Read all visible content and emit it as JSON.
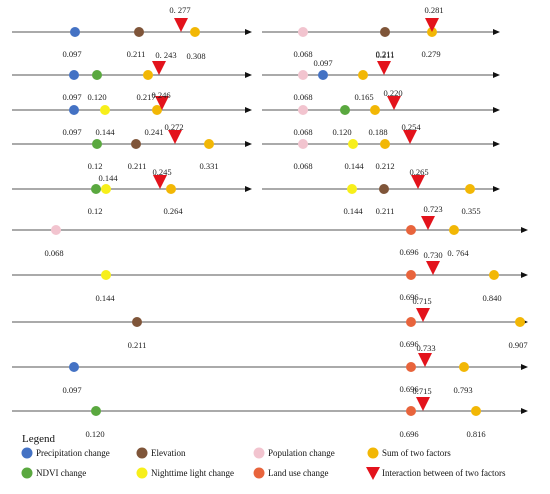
{
  "colors": {
    "precipitation": "#4472c4",
    "elevation": "#7f5539",
    "population": "#f2c4cf",
    "sum": "#f2b705",
    "ndvi": "#5aa83f",
    "light": "#f7ef1a",
    "landuse": "#e8643c",
    "interaction": "#e3131c",
    "axis": "#555555"
  },
  "legend": {
    "title": "Legend",
    "items": [
      {
        "key": "precipitation",
        "shape": "circle",
        "label": "Precipitation change"
      },
      {
        "key": "elevation",
        "shape": "circle",
        "label": "Elevation"
      },
      {
        "key": "population",
        "shape": "circle",
        "label": "Population change"
      },
      {
        "key": "sum",
        "shape": "circle",
        "label": "Sum of two factors"
      },
      {
        "key": "ndvi",
        "shape": "circle",
        "label": "NDVI change"
      },
      {
        "key": "light",
        "shape": "circle",
        "label": "Nighttime light change"
      },
      {
        "key": "landuse",
        "shape": "circle",
        "label": "Land use change"
      },
      {
        "key": "interaction",
        "shape": "triangle",
        "label": "Interaction between of two factors"
      }
    ]
  },
  "lines": [
    {
      "id": "L1",
      "markers": [
        {
          "type": "precipitation",
          "value": "0.097"
        },
        {
          "type": "elevation",
          "value": "0.211"
        },
        {
          "type": "sum",
          "value": "0.308"
        },
        {
          "type": "interaction",
          "value": "0. 277"
        }
      ]
    },
    {
      "id": "R1",
      "markers": [
        {
          "type": "population",
          "value": "0.068"
        },
        {
          "type": "elevation",
          "value": "0.211"
        },
        {
          "type": "sum",
          "value": "0.279"
        },
        {
          "type": "interaction",
          "value": "0.281"
        }
      ]
    },
    {
      "id": "L2",
      "markers": [
        {
          "type": "precipitation",
          "value": "0.097"
        },
        {
          "type": "ndvi",
          "value": "0.120"
        },
        {
          "type": "sum",
          "value": "0.217"
        },
        {
          "type": "interaction",
          "value": "0. 243"
        }
      ]
    },
    {
      "id": "R2",
      "markers": [
        {
          "type": "population",
          "value": "0.068"
        },
        {
          "type": "precipitation",
          "value": "0.097"
        },
        {
          "type": "sum",
          "value": "0.165"
        },
        {
          "type": "interaction",
          "value": "0.211"
        }
      ]
    },
    {
      "id": "L3",
      "markers": [
        {
          "type": "precipitation",
          "value": "0.097"
        },
        {
          "type": "light",
          "value": "0.144"
        },
        {
          "type": "sum",
          "value": "0.241"
        },
        {
          "type": "interaction",
          "value": "0.246"
        }
      ]
    },
    {
      "id": "R3",
      "markers": [
        {
          "type": "population",
          "value": "0.068"
        },
        {
          "type": "ndvi",
          "value": "0.120"
        },
        {
          "type": "sum",
          "value": "0.188"
        },
        {
          "type": "interaction",
          "value": "0.220"
        }
      ]
    },
    {
      "id": "L4",
      "markers": [
        {
          "type": "ndvi",
          "value": "0.12"
        },
        {
          "type": "elevation",
          "value": "0.211"
        },
        {
          "type": "interaction",
          "value": "0.272"
        },
        {
          "type": "sum",
          "value": "0.331"
        }
      ]
    },
    {
      "id": "R4",
      "markers": [
        {
          "type": "population",
          "value": "0.068"
        },
        {
          "type": "light",
          "value": "0.144"
        },
        {
          "type": "sum",
          "value": "0.212"
        },
        {
          "type": "interaction",
          "value": "0.254"
        }
      ]
    },
    {
      "id": "L5",
      "markers": [
        {
          "type": "ndvi",
          "value": "0.12"
        },
        {
          "type": "light",
          "value": "0.144"
        },
        {
          "type": "interaction",
          "value": "0.245"
        },
        {
          "type": "sum",
          "value": "0.264"
        }
      ]
    },
    {
      "id": "R5",
      "markers": [
        {
          "type": "light",
          "value": "0.144"
        },
        {
          "type": "elevation",
          "value": "0.211"
        },
        {
          "type": "interaction",
          "value": "0.265"
        },
        {
          "type": "sum",
          "value": "0.355"
        }
      ]
    },
    {
      "id": "F1",
      "markers": [
        {
          "type": "population",
          "value": "0.068"
        },
        {
          "type": "landuse",
          "value": "0.696"
        },
        {
          "type": "interaction",
          "value": "0.723"
        },
        {
          "type": "sum",
          "value": "0. 764"
        }
      ]
    },
    {
      "id": "F2",
      "markers": [
        {
          "type": "light",
          "value": "0.144"
        },
        {
          "type": "landuse",
          "value": "0.696"
        },
        {
          "type": "interaction",
          "value": "0.730"
        },
        {
          "type": "sum",
          "value": "0.840"
        }
      ]
    },
    {
      "id": "F3",
      "markers": [
        {
          "type": "elevation",
          "value": "0.211"
        },
        {
          "type": "landuse",
          "value": "0.696"
        },
        {
          "type": "interaction",
          "value": "0.715"
        },
        {
          "type": "sum",
          "value": "0.907"
        }
      ]
    },
    {
      "id": "F4",
      "markers": [
        {
          "type": "precipitation",
          "value": "0.097"
        },
        {
          "type": "landuse",
          "value": "0.696"
        },
        {
          "type": "interaction",
          "value": "0.733"
        },
        {
          "type": "sum",
          "value": "0.793"
        }
      ]
    },
    {
      "id": "F5",
      "markers": [
        {
          "type": "ndvi",
          "value": "0.120"
        },
        {
          "type": "landuse",
          "value": "0.696"
        },
        {
          "type": "interaction",
          "value": "0.715"
        },
        {
          "type": "sum",
          "value": "0.816"
        }
      ]
    }
  ]
}
